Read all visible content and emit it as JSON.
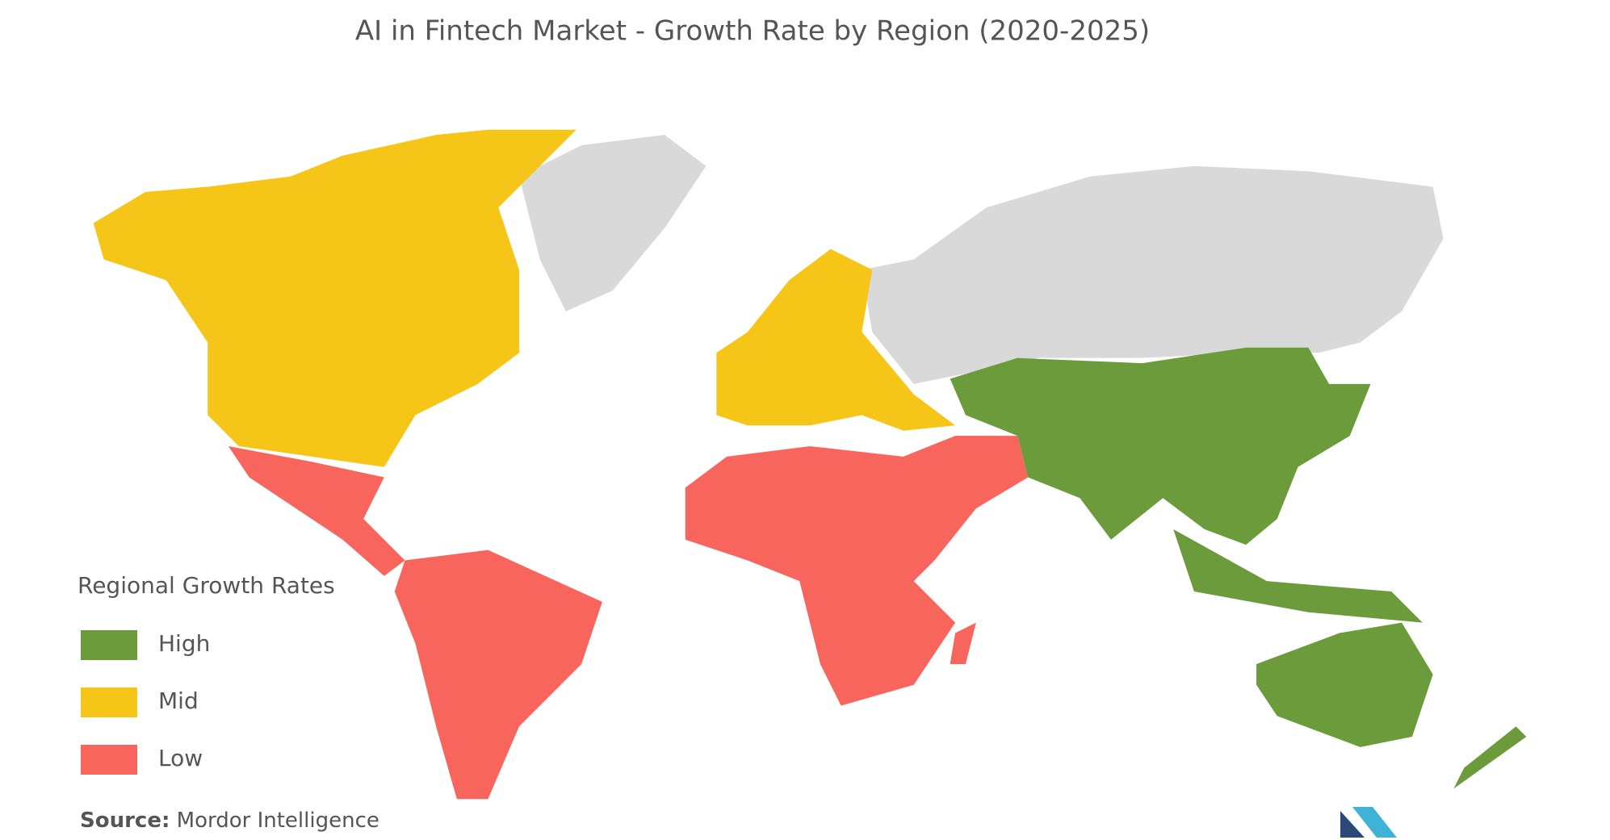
{
  "title": "AI in Fintech Market - Growth Rate by Region (2020-2025)",
  "legend": {
    "title": "Regional Growth Rates",
    "items": [
      {
        "label": "High",
        "color": "#6c9b3c"
      },
      {
        "label": "Mid",
        "color": "#f5c518"
      },
      {
        "label": "Low",
        "color": "#f8655c"
      }
    ]
  },
  "source": {
    "label": "Source:",
    "text": "Mordor Intelligence"
  }
}
